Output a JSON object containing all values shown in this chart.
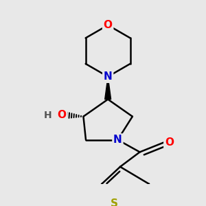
{
  "bg_color": "#e8e8e8",
  "atom_colors": {
    "O": "#ff0000",
    "N": "#0000cd",
    "S": "#a0a000",
    "C": "#000000",
    "H": "#555555"
  },
  "bond_color": "#000000",
  "bond_width": 1.8
}
